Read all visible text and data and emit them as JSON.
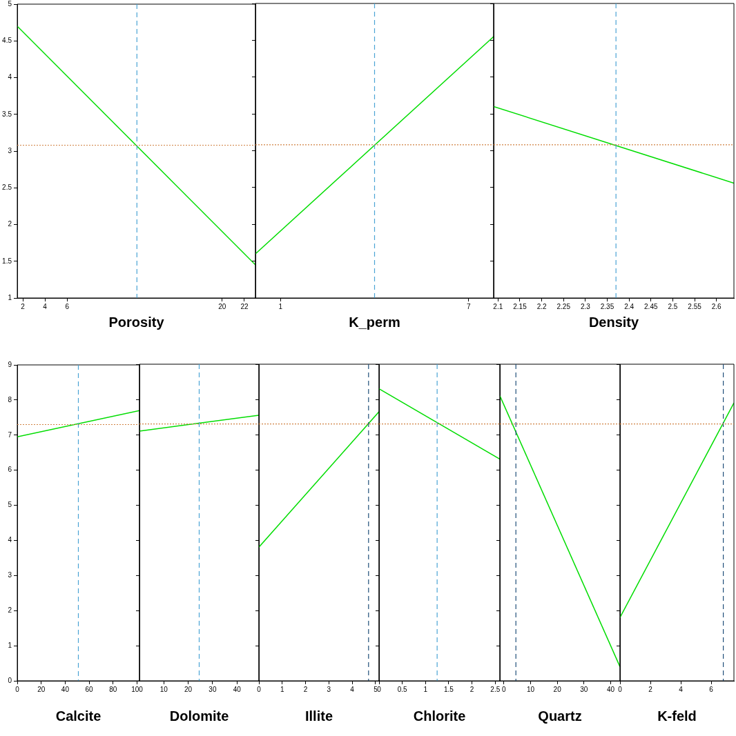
{
  "chart_data": [
    {
      "type": "line",
      "xlabel": "Porosity",
      "xlim": [
        1.5,
        23
      ],
      "xticks": [
        2,
        4,
        6,
        20,
        22
      ],
      "ylim": [
        1,
        5
      ],
      "yticks": [
        1,
        1.5,
        2,
        2.5,
        3,
        3.5,
        4,
        4.5,
        5
      ],
      "marker": "none",
      "series": [
        {
          "color": "#00dd00",
          "x": [
            1.5,
            23
          ],
          "values": [
            4.7,
            1.45
          ]
        }
      ],
      "ref_lines": [
        {
          "axis": "x",
          "value": 12.3,
          "color": "#4aa3d4",
          "line_style": "dashed"
        },
        {
          "axis": "y",
          "value": 3.08,
          "color": "#d08040",
          "line_style": "dotted"
        }
      ]
    },
    {
      "type": "line",
      "xlabel": "K_perm",
      "xlim": [
        0.2,
        7.8
      ],
      "xticks": [
        1,
        7
      ],
      "ylim": [
        1,
        5
      ],
      "yticks": [
        1,
        1.5,
        2,
        2.5,
        3,
        3.5,
        4,
        4.5,
        5
      ],
      "tick_labels": "x",
      "marker": "none",
      "series": [
        {
          "color": "#00dd00",
          "x": [
            0.2,
            7.8
          ],
          "values": [
            1.6,
            4.55
          ]
        }
      ],
      "ref_lines": [
        {
          "axis": "x",
          "value": 4,
          "color": "#4aa3d4",
          "line_style": "dashed"
        },
        {
          "axis": "y",
          "value": 3.08,
          "color": "#d08040",
          "line_style": "dotted"
        }
      ]
    },
    {
      "type": "line",
      "xlabel": "Density",
      "xlim": [
        2.09,
        2.64
      ],
      "xticks": [
        2.1,
        2.15,
        2.2,
        2.25,
        2.3,
        2.35,
        2.4,
        2.45,
        2.5,
        2.55,
        2.6
      ],
      "ylim": [
        1,
        5
      ],
      "yticks": [
        1,
        1.5,
        2,
        2.5,
        3,
        3.5,
        4,
        4.5,
        5
      ],
      "tick_labels": "x",
      "marker": "none",
      "series": [
        {
          "color": "#00dd00",
          "x": [
            2.09,
            2.64
          ],
          "values": [
            3.6,
            2.56
          ]
        }
      ],
      "ref_lines": [
        {
          "axis": "x",
          "value": 2.37,
          "color": "#4aa3d4",
          "line_style": "dashed"
        },
        {
          "axis": "y",
          "value": 3.08,
          "color": "#d08040",
          "line_style": "dotted"
        }
      ]
    },
    {
      "type": "line",
      "xlabel": "Calcite",
      "xlim": [
        0,
        102
      ],
      "xticks": [
        0,
        20,
        40,
        60,
        80,
        100
      ],
      "ylim": [
        0,
        9
      ],
      "yticks": [
        0,
        1,
        2,
        3,
        4,
        5,
        6,
        7,
        8,
        9
      ],
      "marker": "none",
      "series": [
        {
          "color": "#00dd00",
          "x": [
            0,
            102
          ],
          "values": [
            6.95,
            7.7
          ]
        }
      ],
      "ref_lines": [
        {
          "axis": "x",
          "value": 51,
          "color": "#4aa3d4",
          "line_style": "dashed"
        },
        {
          "axis": "y",
          "value": 7.3,
          "color": "#d08040",
          "line_style": "dotted"
        }
      ]
    },
    {
      "type": "line",
      "xlabel": "Dolomite",
      "xlim": [
        0,
        49
      ],
      "xticks": [
        10,
        20,
        30,
        40
      ],
      "ylim": [
        0,
        9
      ],
      "yticks": [
        0,
        1,
        2,
        3,
        4,
        5,
        6,
        7,
        8,
        9
      ],
      "tick_labels": "x",
      "marker": "none",
      "series": [
        {
          "color": "#00dd00",
          "x": [
            0,
            49
          ],
          "values": [
            7.1,
            7.55
          ]
        }
      ],
      "ref_lines": [
        {
          "axis": "x",
          "value": 24.5,
          "color": "#4aa3d4",
          "line_style": "dashed"
        },
        {
          "axis": "y",
          "value": 7.3,
          "color": "#d08040",
          "line_style": "dotted"
        }
      ]
    },
    {
      "type": "line",
      "xlabel": "Illite",
      "xlim": [
        0,
        5.15
      ],
      "xticks": [
        0,
        1,
        2,
        3,
        4,
        5
      ],
      "ylim": [
        0,
        9
      ],
      "yticks": [
        0,
        1,
        2,
        3,
        4,
        5,
        6,
        7,
        8,
        9
      ],
      "tick_labels": "x",
      "marker": "none",
      "series": [
        {
          "color": "#00dd00",
          "x": [
            0,
            5.15
          ],
          "values": [
            3.8,
            7.65
          ]
        }
      ],
      "ref_lines": [
        {
          "axis": "x",
          "value": 4.7,
          "color": "#1f4e79",
          "line_style": "dashed"
        },
        {
          "axis": "y",
          "value": 7.3,
          "color": "#d08040",
          "line_style": "dotted"
        }
      ]
    },
    {
      "type": "line",
      "xlabel": "Chlorite",
      "xlim": [
        0,
        2.6
      ],
      "xticks": [
        0,
        0.5,
        1,
        1.5,
        2,
        2.5
      ],
      "ylim": [
        0,
        9
      ],
      "yticks": [
        0,
        1,
        2,
        3,
        4,
        5,
        6,
        7,
        8,
        9
      ],
      "tick_labels": "x",
      "marker": "none",
      "series": [
        {
          "color": "#00dd00",
          "x": [
            0,
            2.6
          ],
          "values": [
            8.3,
            6.3
          ]
        }
      ],
      "ref_lines": [
        {
          "axis": "x",
          "value": 1.25,
          "color": "#4aa3d4",
          "line_style": "dashed"
        },
        {
          "axis": "y",
          "value": 7.3,
          "color": "#d08040",
          "line_style": "dotted"
        }
      ]
    },
    {
      "type": "line",
      "xlabel": "Quartz",
      "xlim": [
        -1.5,
        43.5
      ],
      "xticks": [
        0,
        10,
        20,
        30,
        40
      ],
      "ylim": [
        0,
        9
      ],
      "yticks": [
        0,
        1,
        2,
        3,
        4,
        5,
        6,
        7,
        8,
        9
      ],
      "tick_labels": "x",
      "marker": "none",
      "series": [
        {
          "color": "#00dd00",
          "x": [
            -1.5,
            43.5
          ],
          "values": [
            8.1,
            0.4
          ]
        }
      ],
      "ref_lines": [
        {
          "axis": "x",
          "value": 4.5,
          "color": "#1f4e79",
          "line_style": "dashed"
        },
        {
          "axis": "y",
          "value": 7.3,
          "color": "#d08040",
          "line_style": "dotted"
        }
      ]
    },
    {
      "type": "line",
      "xlabel": "K-feld",
      "xlim": [
        0,
        7.5
      ],
      "xticks": [
        0,
        2,
        4,
        6
      ],
      "ylim": [
        0,
        9
      ],
      "yticks": [
        0,
        1,
        2,
        3,
        4,
        5,
        6,
        7,
        8,
        9
      ],
      "tick_labels": "x",
      "marker": "none",
      "series": [
        {
          "color": "#00dd00",
          "x": [
            0,
            7.5
          ],
          "values": [
            1.8,
            7.9
          ]
        }
      ],
      "ref_lines": [
        {
          "axis": "x",
          "value": 6.8,
          "color": "#1f4e79",
          "line_style": "dashed"
        },
        {
          "axis": "y",
          "value": 7.3,
          "color": "#d08040",
          "line_style": "dotted"
        }
      ]
    }
  ]
}
